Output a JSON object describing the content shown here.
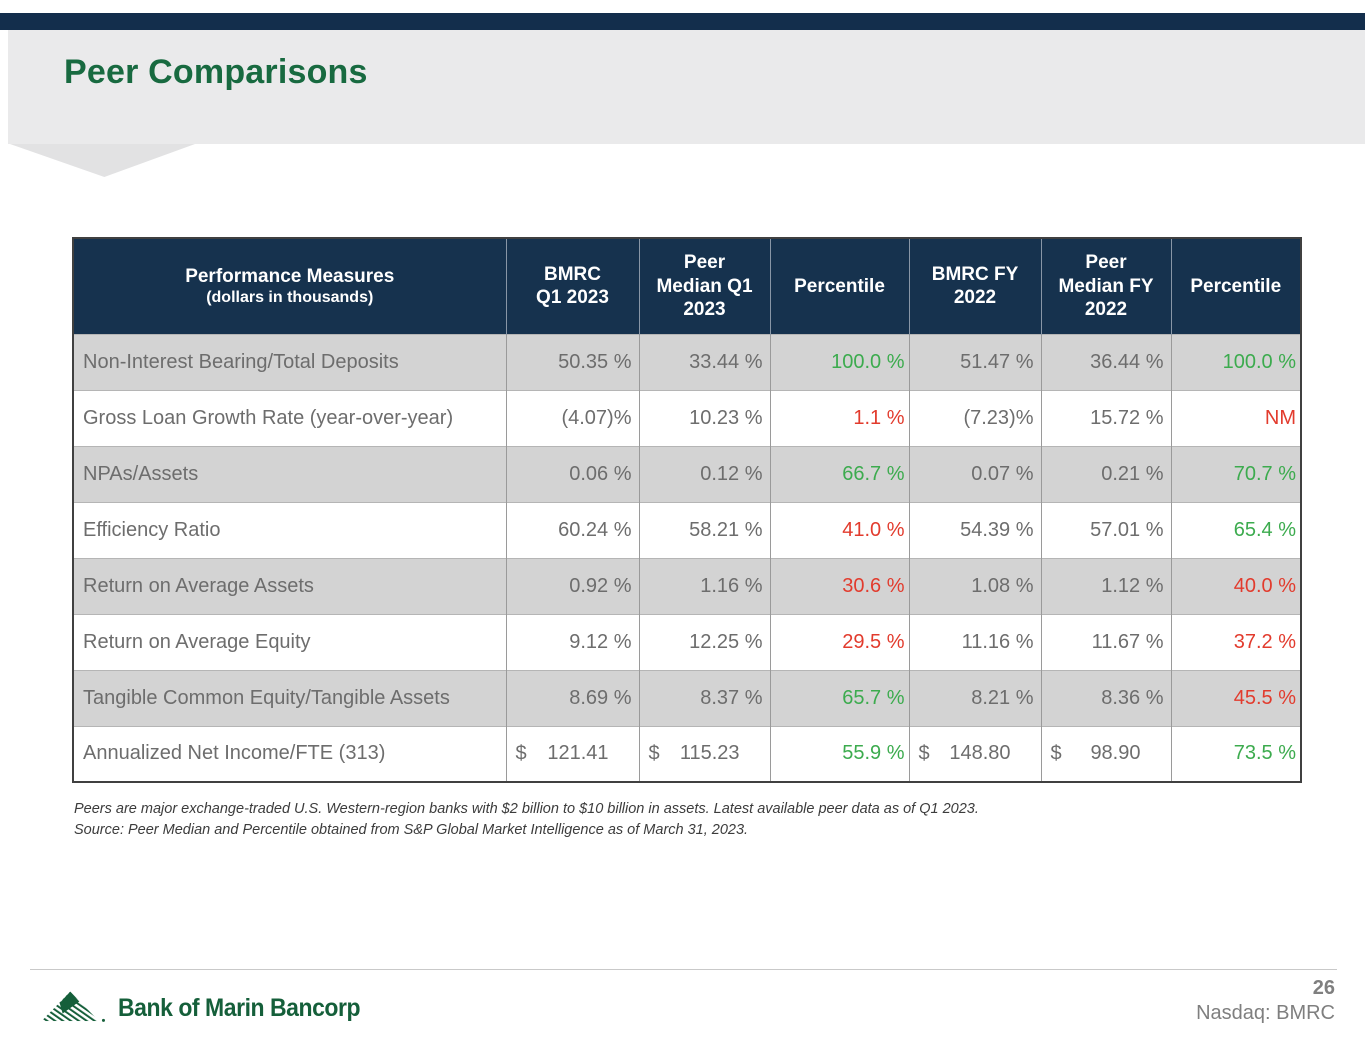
{
  "slide": {
    "title": "Peer Comparisons",
    "page_number": "26",
    "ticker": "Nasdaq: BMRC",
    "logo_text": "Bank of Marin Bancorp"
  },
  "colors": {
    "title_green": "#186A40",
    "header_navy": "#16324E",
    "positive_green": "#3CAB4E",
    "negative_red": "#E23B2D",
    "shaded_row_gray": "#D3D3D3",
    "band_gray": "#EAEAEB",
    "top_bar_navy": "#132E4C",
    "logo_green": "#155F3A"
  },
  "table": {
    "header": {
      "title": "Performance Measures",
      "subtitle": "(dollars in thousands)",
      "cols": [
        {
          "lines": [
            "BMRC",
            "Q1 2023"
          ]
        },
        {
          "lines": [
            "Peer",
            "Median Q1",
            "2023"
          ]
        },
        {
          "lines": [
            "Percentile"
          ]
        },
        {
          "lines": [
            "BMRC FY",
            "2022"
          ]
        },
        {
          "lines": [
            "Peer",
            "Median FY",
            "2022"
          ]
        },
        {
          "lines": [
            "Percentile"
          ]
        }
      ]
    },
    "rows": [
      {
        "label": "Non-Interest Bearing/Total Deposits",
        "cells": [
          {
            "v": "50.35 %"
          },
          {
            "v": "33.44 %"
          },
          {
            "v": "100.0 %",
            "tone": "green"
          },
          {
            "v": "51.47 %"
          },
          {
            "v": "36.44 %"
          },
          {
            "v": "100.0 %",
            "tone": "green"
          }
        ]
      },
      {
        "label": "Gross Loan Growth Rate (year-over-year)",
        "cells": [
          {
            "v": "(4.07)%"
          },
          {
            "v": "10.23 %"
          },
          {
            "v": "1.1 %",
            "tone": "red"
          },
          {
            "v": "(7.23)%"
          },
          {
            "v": "15.72 %"
          },
          {
            "v": "NM",
            "tone": "red"
          }
        ]
      },
      {
        "label": "NPAs/Assets",
        "cells": [
          {
            "v": "0.06 %"
          },
          {
            "v": "0.12 %"
          },
          {
            "v": "66.7 %",
            "tone": "green"
          },
          {
            "v": "0.07 %"
          },
          {
            "v": "0.21 %"
          },
          {
            "v": "70.7 %",
            "tone": "green"
          }
        ]
      },
      {
        "label": "Efficiency Ratio",
        "cells": [
          {
            "v": "60.24 %"
          },
          {
            "v": "58.21 %"
          },
          {
            "v": "41.0 %",
            "tone": "red"
          },
          {
            "v": "54.39 %"
          },
          {
            "v": "57.01 %"
          },
          {
            "v": "65.4 %",
            "tone": "green"
          }
        ]
      },
      {
        "label": "Return on Average Assets",
        "cells": [
          {
            "v": "0.92 %"
          },
          {
            "v": "1.16 %"
          },
          {
            "v": "30.6 %",
            "tone": "red"
          },
          {
            "v": "1.08 %"
          },
          {
            "v": "1.12 %"
          },
          {
            "v": "40.0 %",
            "tone": "red"
          }
        ]
      },
      {
        "label": "Return on Average Equity",
        "cells": [
          {
            "v": "9.12 %"
          },
          {
            "v": "12.25 %"
          },
          {
            "v": "29.5 %",
            "tone": "red"
          },
          {
            "v": "11.16 %"
          },
          {
            "v": "11.67 %"
          },
          {
            "v": "37.2 %",
            "tone": "red"
          }
        ]
      },
      {
        "label": "Tangible Common Equity/Tangible Assets",
        "cells": [
          {
            "v": "8.69 %"
          },
          {
            "v": "8.37 %"
          },
          {
            "v": "65.7 %",
            "tone": "green"
          },
          {
            "v": "8.21 %"
          },
          {
            "v": "8.36 %"
          },
          {
            "v": "45.5 %",
            "tone": "red"
          }
        ]
      },
      {
        "label": "Annualized Net Income/FTE (313)",
        "cells": [
          {
            "cur": "$",
            "v": "121.41"
          },
          {
            "cur": "$",
            "v": "115.23"
          },
          {
            "v": "55.9 %",
            "tone": "green"
          },
          {
            "cur": "$",
            "v": "148.80"
          },
          {
            "cur": "$",
            "v": "98.90"
          },
          {
            "v": "73.5 %",
            "tone": "green"
          }
        ]
      }
    ]
  },
  "footnotes": [
    "Peers are major exchange-traded U.S. Western-region banks with $2 billion to $10 billion in assets. Latest available peer data as of Q1 2023.",
    "Source: Peer Median and Percentile obtained from S&P Global Market Intelligence as of March 31, 2023."
  ]
}
